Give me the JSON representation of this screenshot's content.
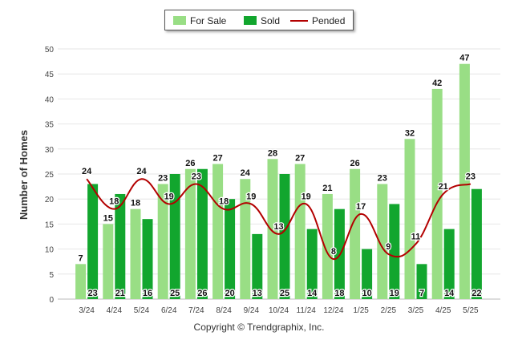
{
  "legend": {
    "for_sale": "For Sale",
    "sold": "Sold",
    "pended": "Pended"
  },
  "footer": "Copyright © Trendgraphix, Inc.",
  "colors": {
    "for_sale": "#99de85",
    "sold": "#12a62e",
    "pended": "#b30000",
    "grid": "#e6e6e6",
    "axis_text": "#444444"
  },
  "chart_data": {
    "type": "bar",
    "categories": [
      "3/24",
      "4/24",
      "5/24",
      "6/24",
      "7/24",
      "8/24",
      "9/24",
      "10/24",
      "11/24",
      "12/24",
      "1/25",
      "2/25",
      "3/25",
      "4/25",
      "5/25"
    ],
    "series": [
      {
        "name": "For Sale",
        "type": "bar",
        "values": [
          7,
          15,
          18,
          23,
          26,
          27,
          24,
          28,
          27,
          21,
          26,
          23,
          32,
          42,
          47
        ]
      },
      {
        "name": "Sold",
        "type": "bar",
        "values": [
          23,
          21,
          16,
          25,
          26,
          20,
          13,
          25,
          14,
          18,
          10,
          19,
          7,
          14,
          22
        ]
      },
      {
        "name": "Pended",
        "type": "line",
        "values": [
          24,
          18,
          24,
          19,
          23,
          18,
          19,
          13,
          19,
          8,
          17,
          9,
          11,
          21,
          23
        ]
      }
    ],
    "ylabel": "Number of Homes",
    "xlabel": "",
    "ylim": [
      0,
      50
    ],
    "yticks": [
      0,
      5,
      10,
      15,
      20,
      25,
      30,
      35,
      40,
      45,
      50
    ],
    "grid": true,
    "legend_position": "top-center"
  }
}
